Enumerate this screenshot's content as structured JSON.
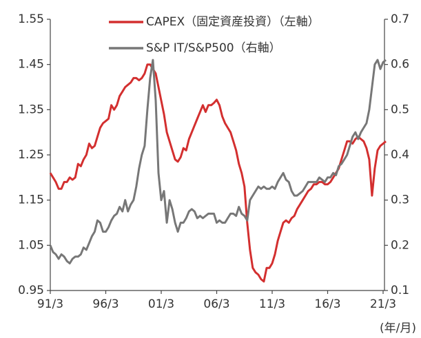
{
  "chart_data": {
    "type": "line",
    "legend": [
      "CAPEX（固定資産投資）（左軸）",
      "S&P IT/S&P500（右軸）"
    ],
    "unit_label": "(年/月)",
    "categories": [
      "91/3",
      "91/6",
      "91/9",
      "91/12",
      "92/3",
      "92/6",
      "92/9",
      "92/12",
      "93/3",
      "93/6",
      "93/9",
      "93/12",
      "94/3",
      "94/6",
      "94/9",
      "94/12",
      "95/3",
      "95/6",
      "95/9",
      "95/12",
      "96/3",
      "96/6",
      "96/9",
      "96/12",
      "97/3",
      "97/6",
      "97/9",
      "97/12",
      "98/3",
      "98/6",
      "98/9",
      "98/12",
      "99/3",
      "99/6",
      "99/9",
      "99/12",
      "00/3",
      "00/6",
      "00/9",
      "00/12",
      "01/3",
      "01/6",
      "01/9",
      "01/12",
      "02/3",
      "02/6",
      "02/9",
      "02/12",
      "03/3",
      "03/6",
      "03/9",
      "03/12",
      "04/3",
      "04/6",
      "04/9",
      "04/12",
      "05/3",
      "05/6",
      "05/9",
      "05/12",
      "06/3",
      "06/6",
      "06/9",
      "06/12",
      "07/3",
      "07/6",
      "07/9",
      "07/12",
      "08/3",
      "08/6",
      "08/9",
      "08/12",
      "09/3",
      "09/6",
      "09/9",
      "09/12",
      "10/3",
      "10/6",
      "10/9",
      "10/12",
      "11/3",
      "11/6",
      "11/9",
      "11/12",
      "12/3",
      "12/6",
      "12/9",
      "12/12",
      "13/3",
      "13/6",
      "13/9",
      "13/12",
      "14/3",
      "14/6",
      "14/9",
      "14/12",
      "15/3",
      "15/6",
      "15/9",
      "15/12",
      "16/3",
      "16/6",
      "16/9",
      "16/12",
      "17/3",
      "17/6",
      "17/9",
      "17/12",
      "18/3",
      "18/6",
      "18/9",
      "18/12",
      "19/3",
      "19/6",
      "19/9",
      "19/12",
      "20/3",
      "20/6",
      "20/9",
      "20/12",
      "21/3",
      "21/6"
    ],
    "xtick_indices": [
      0,
      20,
      40,
      60,
      80,
      100,
      120
    ],
    "series": [
      {
        "name": "CAPEX（固定資産投資）（左軸）",
        "color": "#d32f2f",
        "axis": "y",
        "values": [
          1.21,
          1.2,
          1.19,
          1.175,
          1.175,
          1.19,
          1.19,
          1.2,
          1.195,
          1.2,
          1.23,
          1.225,
          1.24,
          1.25,
          1.275,
          1.265,
          1.27,
          1.29,
          1.31,
          1.32,
          1.325,
          1.33,
          1.36,
          1.35,
          1.36,
          1.38,
          1.39,
          1.4,
          1.405,
          1.41,
          1.42,
          1.42,
          1.415,
          1.42,
          1.43,
          1.45,
          1.45,
          1.44,
          1.43,
          1.4,
          1.37,
          1.34,
          1.3,
          1.28,
          1.26,
          1.24,
          1.235,
          1.245,
          1.265,
          1.26,
          1.285,
          1.3,
          1.315,
          1.33,
          1.345,
          1.36,
          1.345,
          1.36,
          1.36,
          1.365,
          1.372,
          1.36,
          1.335,
          1.32,
          1.31,
          1.3,
          1.28,
          1.26,
          1.23,
          1.21,
          1.18,
          1.1,
          1.04,
          1.0,
          0.99,
          0.985,
          0.975,
          0.97,
          1.0,
          1.0,
          1.01,
          1.03,
          1.06,
          1.08,
          1.1,
          1.105,
          1.1,
          1.11,
          1.115,
          1.13,
          1.14,
          1.15,
          1.16,
          1.17,
          1.175,
          1.185,
          1.185,
          1.19,
          1.19,
          1.185,
          1.185,
          1.19,
          1.2,
          1.21,
          1.22,
          1.24,
          1.26,
          1.28,
          1.28,
          1.275,
          1.285,
          1.29,
          1.285,
          1.28,
          1.265,
          1.24,
          1.16,
          1.22,
          1.26,
          1.27,
          1.275,
          1.28
        ]
      },
      {
        "name": "S&P IT/S&P500（右軸）",
        "color": "#777777",
        "axis": "y2",
        "values": [
          0.2,
          0.185,
          0.18,
          0.17,
          0.18,
          0.175,
          0.165,
          0.16,
          0.17,
          0.175,
          0.175,
          0.18,
          0.195,
          0.19,
          0.205,
          0.22,
          0.23,
          0.255,
          0.25,
          0.23,
          0.23,
          0.24,
          0.255,
          0.265,
          0.27,
          0.285,
          0.275,
          0.3,
          0.275,
          0.29,
          0.3,
          0.33,
          0.37,
          0.4,
          0.42,
          0.5,
          0.57,
          0.61,
          0.52,
          0.36,
          0.3,
          0.32,
          0.25,
          0.3,
          0.28,
          0.25,
          0.23,
          0.25,
          0.25,
          0.26,
          0.275,
          0.28,
          0.275,
          0.26,
          0.265,
          0.26,
          0.265,
          0.27,
          0.27,
          0.27,
          0.25,
          0.255,
          0.25,
          0.25,
          0.26,
          0.27,
          0.27,
          0.265,
          0.285,
          0.27,
          0.265,
          0.255,
          0.3,
          0.31,
          0.32,
          0.33,
          0.325,
          0.33,
          0.325,
          0.325,
          0.33,
          0.325,
          0.34,
          0.35,
          0.36,
          0.345,
          0.34,
          0.32,
          0.31,
          0.31,
          0.315,
          0.32,
          0.33,
          0.34,
          0.34,
          0.34,
          0.34,
          0.35,
          0.345,
          0.34,
          0.35,
          0.35,
          0.36,
          0.355,
          0.375,
          0.38,
          0.39,
          0.4,
          0.42,
          0.44,
          0.45,
          0.435,
          0.45,
          0.46,
          0.47,
          0.5,
          0.55,
          0.6,
          0.61,
          0.59,
          0.605,
          0.61
        ]
      }
    ],
    "ylim": [
      0.95,
      1.55
    ],
    "yticks": [
      0.95,
      1.05,
      1.15,
      1.25,
      1.35,
      1.45,
      1.55
    ],
    "y2lim": [
      0.1,
      0.7
    ],
    "y2ticks": [
      0.1,
      0.2,
      0.3,
      0.4,
      0.5,
      0.6,
      0.7
    ],
    "grid": false
  }
}
